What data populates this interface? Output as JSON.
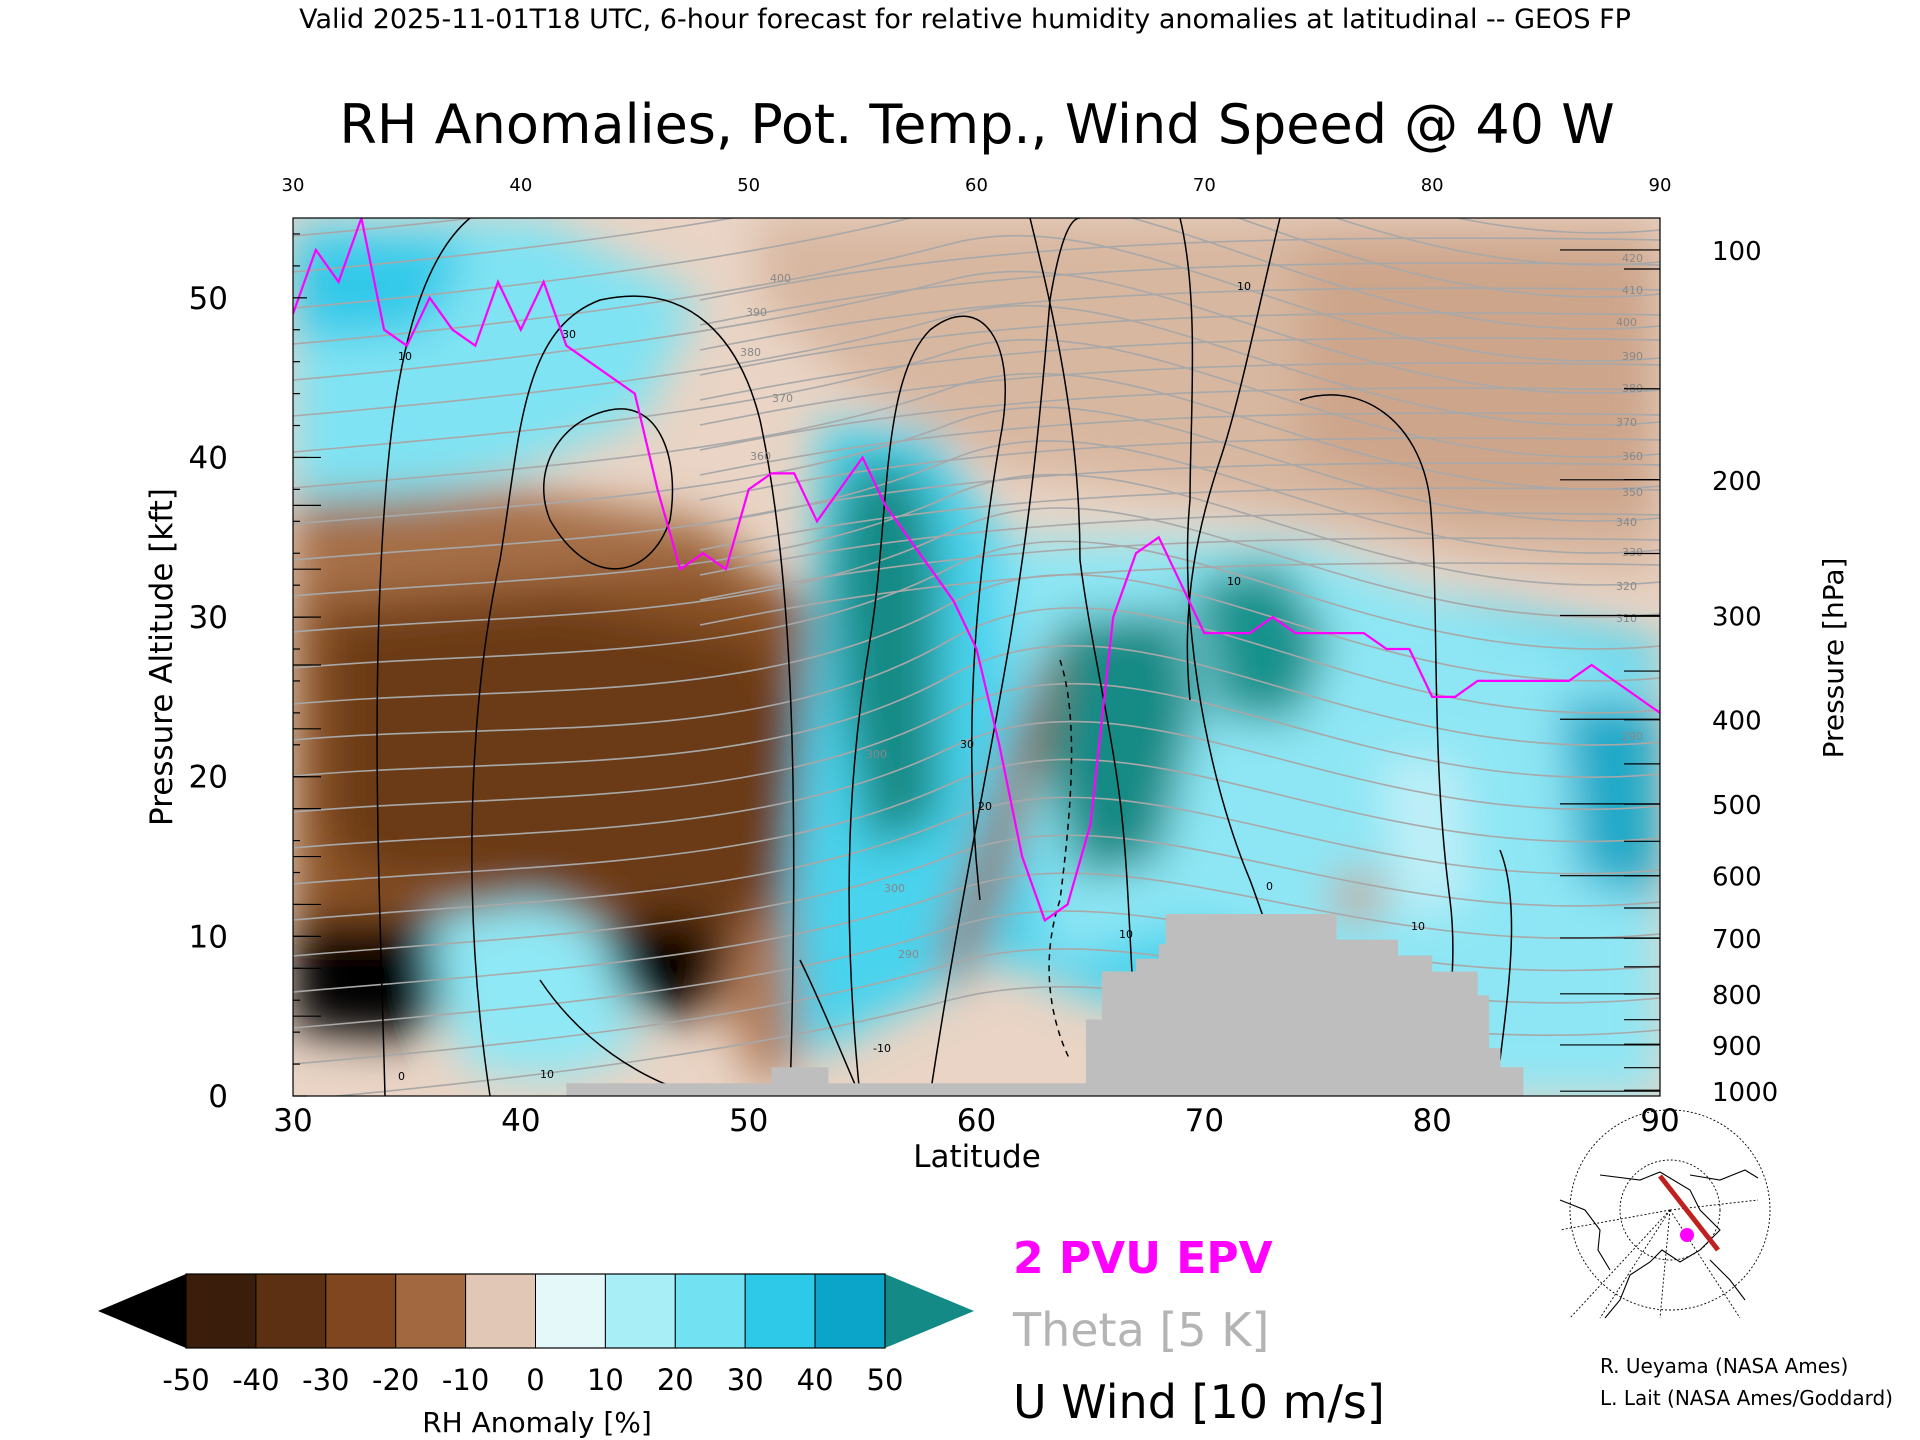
{
  "header": {
    "valid_line": "Valid 2025-11-01T18 UTC, 6-hour forecast for relative humidity anomalies at latitudinal -- GEOS FP"
  },
  "chart_data": {
    "type": "heatmap",
    "title": "RH Anomalies, Pot. Temp., Wind Speed @ 40 W",
    "xlabel": "Latitude",
    "ylabel_left": "Pressure Altitude [kft]",
    "ylabel_right": "Pressure [hPa]",
    "xlim": [
      30,
      90
    ],
    "ylim": [
      0,
      55
    ],
    "x_ticks": [
      "30",
      "40",
      "50",
      "60",
      "70",
      "80",
      "90"
    ],
    "top_ticks": [
      "30",
      "40",
      "50",
      "60",
      "70",
      "80",
      "90"
    ],
    "y_ticks": [
      {
        "value": 0,
        "label": "0"
      },
      {
        "value": 10,
        "label": "10"
      },
      {
        "value": 20,
        "label": "20"
      },
      {
        "value": 30,
        "label": "30"
      },
      {
        "value": 40,
        "label": "40"
      },
      {
        "value": 50,
        "label": "50"
      }
    ],
    "pressure_ticks": [
      {
        "kft": 53.0,
        "label": "100"
      },
      {
        "kft": 38.6,
        "label": "200"
      },
      {
        "kft": 30.1,
        "label": "300"
      },
      {
        "kft": 23.6,
        "label": "400"
      },
      {
        "kft": 18.3,
        "label": "500"
      },
      {
        "kft": 13.8,
        "label": "600"
      },
      {
        "kft": 9.9,
        "label": "700"
      },
      {
        "kft": 6.4,
        "label": "800"
      },
      {
        "kft": 3.2,
        "label": "900"
      },
      {
        "kft": 0.3,
        "label": "1000"
      }
    ],
    "legend": {
      "epv": "2 PVU EPV",
      "theta": "Theta [5 K]",
      "uwind": "U Wind [10 m/s]",
      "epv_color": "#ff00ff",
      "theta_color": "#b4b4b4",
      "uwind_color": "#000000"
    },
    "colorbar": {
      "label": "RH Anomaly [%]",
      "ticks": [
        "-50",
        "-40",
        "-30",
        "-20",
        "-10",
        "0",
        "10",
        "20",
        "30",
        "40",
        "50"
      ],
      "colors": [
        "#3a1e0b",
        "#5c3012",
        "#80461f",
        "#a26840",
        "#c49a7c",
        "#e9d4c5",
        "#d9f4f7",
        "#a8eef7",
        "#72e1f2",
        "#2ec8e8",
        "#0aa5c8"
      ],
      "low_color": "#000000",
      "high_color": "#138a85"
    },
    "terrain": {
      "color": "#bebebe",
      "profile": [
        [
          42,
          0.8
        ],
        [
          51,
          0.8
        ],
        [
          51,
          1.8
        ],
        [
          53.5,
          1.8
        ],
        [
          53.5,
          0.8
        ],
        [
          64.8,
          0.8
        ],
        [
          64.8,
          4.8
        ],
        [
          65.5,
          4.8
        ],
        [
          65.5,
          7.8
        ],
        [
          67,
          7.8
        ],
        [
          67,
          8.6
        ],
        [
          68,
          8.6
        ],
        [
          68,
          9.5
        ],
        [
          68.3,
          9.5
        ],
        [
          68.3,
          11.4
        ],
        [
          75.8,
          11.4
        ],
        [
          75.8,
          9.8
        ],
        [
          78.5,
          9.8
        ],
        [
          78.5,
          8.8
        ],
        [
          80,
          8.8
        ],
        [
          80,
          7.8
        ],
        [
          82,
          7.8
        ],
        [
          82,
          6.3
        ],
        [
          82.5,
          6.3
        ],
        [
          82.5,
          3
        ],
        [
          83,
          3
        ],
        [
          83,
          1.8
        ],
        [
          84,
          1.8
        ],
        [
          84,
          0
        ]
      ]
    },
    "epv_2pvu": {
      "x": [
        30,
        31,
        32,
        33,
        34,
        35,
        36,
        37,
        38,
        39,
        40,
        41,
        42,
        43,
        44,
        45,
        46,
        47,
        48,
        49,
        50,
        51,
        52,
        53,
        54,
        55,
        56,
        57,
        58,
        59,
        60,
        61,
        62,
        63,
        64,
        65,
        66,
        67,
        68,
        69,
        70,
        71,
        72,
        73,
        74,
        75,
        76,
        77,
        78,
        79,
        80,
        81,
        82,
        83,
        84,
        85,
        86,
        87,
        88,
        89,
        90
      ],
      "y": [
        49,
        53,
        51,
        55,
        48,
        47,
        50,
        48,
        47,
        51,
        48,
        51,
        47,
        46,
        45,
        44,
        38,
        33,
        34,
        33,
        38,
        39,
        39,
        36,
        38,
        40,
        37,
        35,
        33,
        31,
        28,
        22,
        15,
        11,
        12,
        17,
        30,
        34,
        35,
        32,
        29,
        29,
        29,
        30,
        29,
        29,
        29,
        29,
        28,
        28,
        25,
        25,
        26,
        26,
        26,
        26,
        26,
        27,
        26,
        25,
        24
      ]
    },
    "uwind_labels": [
      "10",
      "20",
      "30",
      "-10",
      "0"
    ],
    "theta_labels": [
      "290",
      "300",
      "310",
      "320",
      "330",
      "340",
      "350",
      "360",
      "370",
      "380",
      "390",
      "400",
      "410",
      "420"
    ]
  },
  "map": {
    "route_color": "#c02020",
    "marker_color": "#ff00ff"
  },
  "credits": {
    "line1": "R. Ueyama (NASA Ames)",
    "line2": "L. Lait (NASA Ames/Goddard)"
  }
}
